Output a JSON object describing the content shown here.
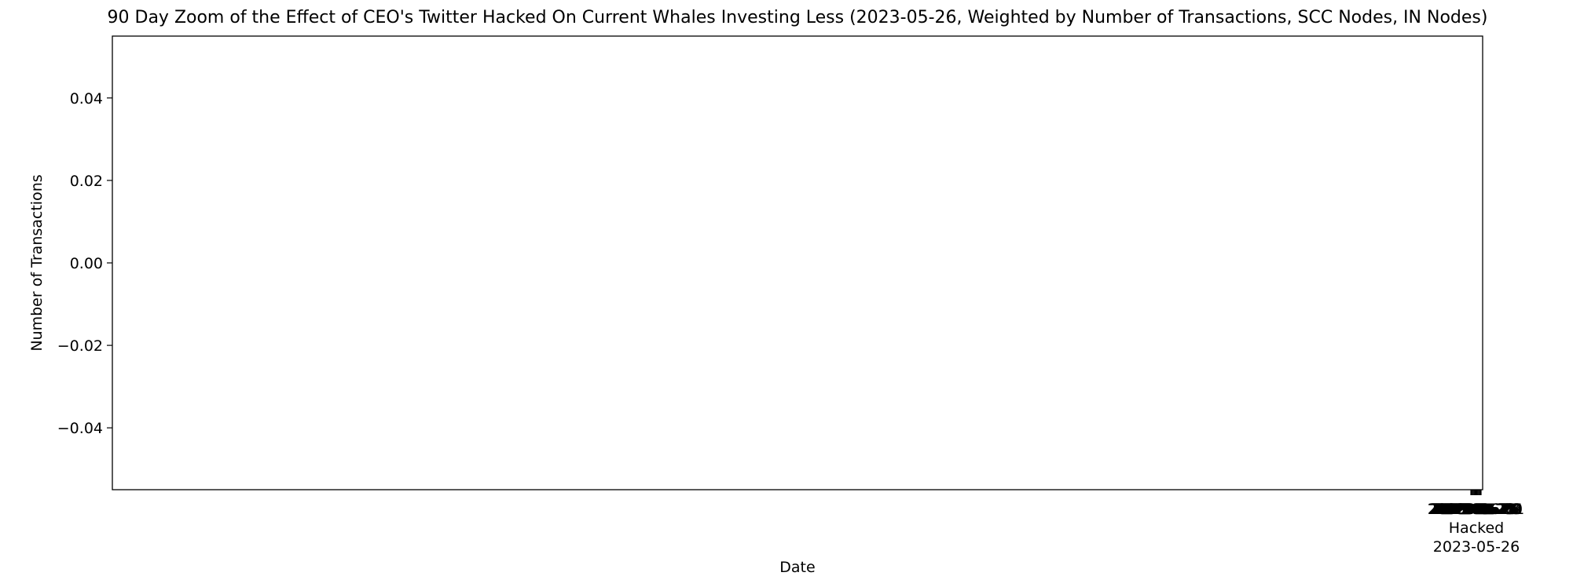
{
  "chart_data": {
    "type": "line",
    "title": "90 Day Zoom of the Effect of CEO's Twitter Hacked On Current Whales Investing Less (2023-05-26, Weighted by Number of Transactions, SCC Nodes, IN Nodes)",
    "xlabel": "Date",
    "ylabel": "Number of Transactions",
    "ylim": [
      -0.055,
      0.055
    ],
    "yticks": [
      0.04,
      0.02,
      0.0,
      -0.02,
      -0.04
    ],
    "ytick_labels": [
      "0.04",
      "0.02",
      "0.00",
      "−0.02",
      "−0.04"
    ],
    "xtick_labels": [
      "2023-05-20",
      "2023-05-21",
      "2023-05-22",
      "2023-05-23",
      "2023-05-24",
      "2023-05-25",
      "2023-05-26",
      "2023-05-27",
      "2023-05-28",
      "2023-05-29",
      "2023-05-30",
      "2023-05-31",
      "2023-06-01"
    ],
    "event": {
      "label": "Hacked",
      "date": "2023-05-26"
    },
    "series": [],
    "grid": false,
    "legend": "none"
  }
}
